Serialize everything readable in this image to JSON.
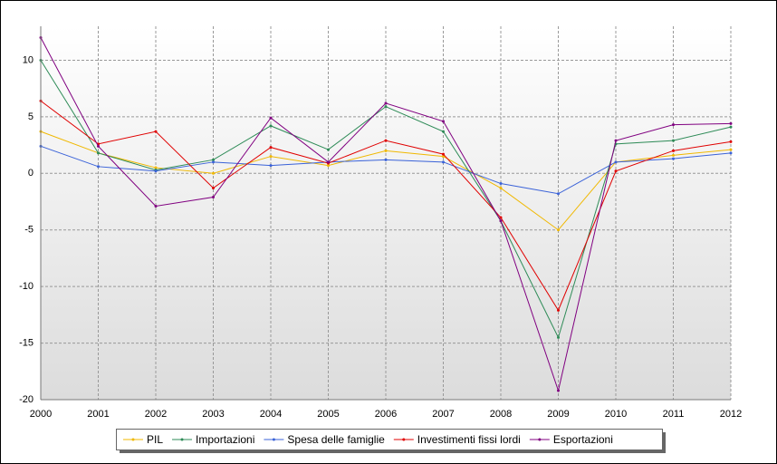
{
  "chart_data": {
    "type": "line",
    "categories": [
      "2000",
      "2001",
      "2002",
      "2003",
      "2004",
      "2005",
      "2006",
      "2007",
      "2008",
      "2009",
      "2010",
      "2011",
      "2012"
    ],
    "series": [
      {
        "name": "PIL",
        "color": "#f0b800",
        "values": [
          3.7,
          1.8,
          0.5,
          0.0,
          1.5,
          0.7,
          2.0,
          1.5,
          -1.3,
          -5.0,
          1.0,
          1.6,
          2.1
        ]
      },
      {
        "name": "Importazioni",
        "color": "#2e8b57",
        "values": [
          10.0,
          1.8,
          0.3,
          1.2,
          4.2,
          2.1,
          5.9,
          3.7,
          -4.2,
          -14.5,
          2.6,
          2.9,
          4.1
        ]
      },
      {
        "name": "Spesa delle famiglie",
        "color": "#3a62d8",
        "values": [
          2.4,
          0.6,
          0.2,
          1.0,
          0.7,
          1.0,
          1.2,
          1.0,
          -0.9,
          -1.8,
          1.0,
          1.3,
          1.8
        ]
      },
      {
        "name": "Investimenti fissi lordi",
        "color": "#e00000",
        "values": [
          6.4,
          2.6,
          3.7,
          -1.3,
          2.3,
          0.9,
          2.9,
          1.7,
          -3.9,
          -12.1,
          0.2,
          2.0,
          2.8
        ]
      },
      {
        "name": "Esportazioni",
        "color": "#800080",
        "values": [
          12.0,
          2.4,
          -2.9,
          -2.1,
          4.9,
          1.0,
          6.2,
          4.6,
          -4.2,
          -19.2,
          2.9,
          4.3,
          4.4
        ]
      }
    ],
    "ylim": [
      -20,
      13
    ],
    "yticks": [
      -20,
      -15,
      -10,
      -5,
      0,
      5,
      10
    ],
    "grid": true,
    "legend": "bottom"
  }
}
